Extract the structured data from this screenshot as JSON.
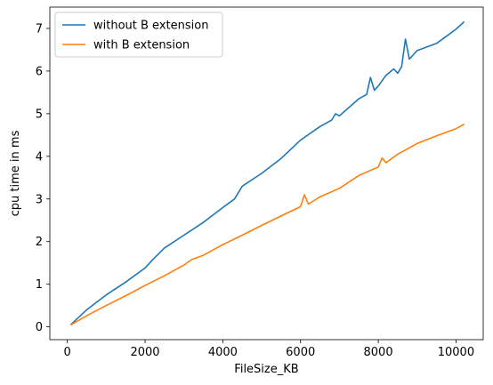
{
  "chart_data": {
    "type": "line",
    "title": "",
    "xlabel": "FileSize_KB",
    "ylabel": "cpu time in ms",
    "xlim": [
      -450,
      10700
    ],
    "ylim": [
      -0.3,
      7.5
    ],
    "xticks": [
      0,
      2000,
      4000,
      6000,
      8000,
      10000
    ],
    "yticks": [
      0,
      1,
      2,
      3,
      4,
      5,
      6,
      7
    ],
    "grid": false,
    "legend": "top-left",
    "series": [
      {
        "name": "without B extension",
        "color": "#1f77b4",
        "x": [
          100,
          500,
          1000,
          1500,
          2000,
          2200,
          2500,
          3000,
          3500,
          4000,
          4300,
          4500,
          5000,
          5500,
          6000,
          6500,
          6800,
          6900,
          7000,
          7500,
          7700,
          7800,
          7900,
          8000,
          8200,
          8400,
          8500,
          8600,
          8700,
          8800,
          9000,
          9500,
          10000,
          10200
        ],
        "y": [
          0.06,
          0.4,
          0.75,
          1.05,
          1.38,
          1.58,
          1.85,
          2.15,
          2.45,
          2.8,
          3.0,
          3.3,
          3.6,
          3.95,
          4.38,
          4.7,
          4.85,
          5.0,
          4.95,
          5.35,
          5.45,
          5.85,
          5.55,
          5.65,
          5.9,
          6.05,
          5.95,
          6.1,
          6.75,
          6.28,
          6.48,
          6.65,
          6.98,
          7.15
        ]
      },
      {
        "name": "with B extension",
        "color": "#ff7f0e",
        "x": [
          100,
          500,
          1000,
          1500,
          2000,
          2500,
          3000,
          3200,
          3500,
          4000,
          4500,
          5000,
          5500,
          6000,
          6100,
          6200,
          6500,
          7000,
          7500,
          8000,
          8100,
          8200,
          8500,
          9000,
          9500,
          10000,
          10200
        ],
        "y": [
          0.05,
          0.26,
          0.5,
          0.73,
          0.97,
          1.2,
          1.45,
          1.58,
          1.68,
          1.93,
          2.15,
          2.38,
          2.6,
          2.82,
          3.1,
          2.88,
          3.05,
          3.25,
          3.55,
          3.75,
          3.96,
          3.85,
          4.05,
          4.3,
          4.48,
          4.65,
          4.75
        ]
      }
    ]
  }
}
